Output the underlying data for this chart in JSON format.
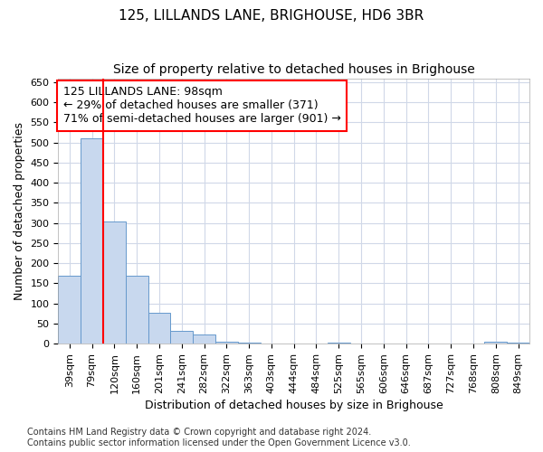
{
  "title": "125, LILLANDS LANE, BRIGHOUSE, HD6 3BR",
  "subtitle": "Size of property relative to detached houses in Brighouse",
  "xlabel": "Distribution of detached houses by size in Brighouse",
  "ylabel": "Number of detached properties",
  "categories": [
    "39sqm",
    "79sqm",
    "120sqm",
    "160sqm",
    "201sqm",
    "241sqm",
    "282sqm",
    "322sqm",
    "363sqm",
    "403sqm",
    "444sqm",
    "484sqm",
    "525sqm",
    "565sqm",
    "606sqm",
    "646sqm",
    "687sqm",
    "727sqm",
    "768sqm",
    "808sqm",
    "849sqm"
  ],
  "values": [
    170,
    510,
    303,
    170,
    78,
    32,
    22,
    5,
    2,
    0,
    0,
    0,
    2,
    0,
    0,
    0,
    0,
    0,
    0,
    5,
    3
  ],
  "bar_color": "#c8d8ee",
  "bar_edge_color": "#6699cc",
  "red_line_x": 1.5,
  "annotation_text": "125 LILLANDS LANE: 98sqm\n← 29% of detached houses are smaller (371)\n71% of semi-detached houses are larger (901) →",
  "annotation_box_color": "white",
  "annotation_box_edge_color": "red",
  "red_line_color": "red",
  "ylim": [
    0,
    660
  ],
  "yticks": [
    0,
    50,
    100,
    150,
    200,
    250,
    300,
    350,
    400,
    450,
    500,
    550,
    600,
    650
  ],
  "footer_line1": "Contains HM Land Registry data © Crown copyright and database right 2024.",
  "footer_line2": "Contains public sector information licensed under the Open Government Licence v3.0.",
  "bg_color": "#ffffff",
  "plot_bg_color": "#ffffff",
  "grid_color": "#d0d8e8",
  "title_fontsize": 11,
  "subtitle_fontsize": 10,
  "axis_label_fontsize": 9,
  "tick_fontsize": 8,
  "footer_fontsize": 7,
  "annotation_fontsize": 9
}
